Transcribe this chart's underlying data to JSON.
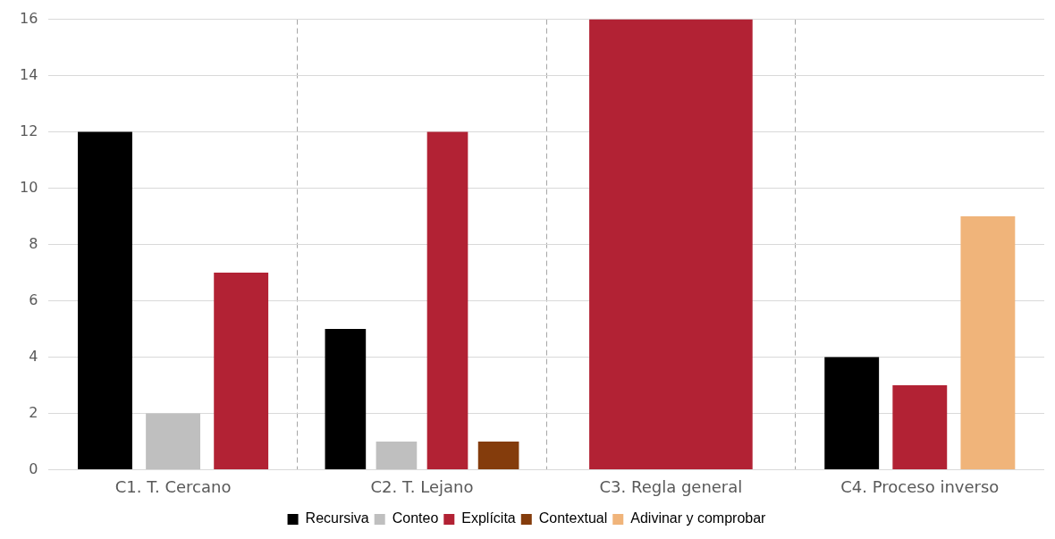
{
  "chart_data": {
    "type": "bar",
    "categories": [
      "C1. T. Cercano",
      "C2. T. Lejano",
      "C3. Regla general",
      "C4. Proceso inverso"
    ],
    "series": [
      {
        "name": "Recursiva",
        "color": "#000000",
        "values": [
          12,
          5,
          null,
          4
        ]
      },
      {
        "name": "Conteo",
        "color": "#bfbfbf",
        "values": [
          2,
          1,
          null,
          null
        ]
      },
      {
        "name": "Explícita",
        "color": "#b22234",
        "values": [
          7,
          12,
          16,
          3
        ]
      },
      {
        "name": "Contextual",
        "color": "#843c0c",
        "values": [
          null,
          1,
          null,
          null
        ]
      },
      {
        "name": "Adivinar y comprobar",
        "color": "#f0b47a",
        "values": [
          null,
          null,
          null,
          9
        ]
      }
    ],
    "ylim": [
      0,
      16
    ],
    "yticks": [
      0,
      2,
      4,
      6,
      8,
      10,
      12,
      14,
      16
    ],
    "grid": true,
    "legend": "bottom"
  }
}
